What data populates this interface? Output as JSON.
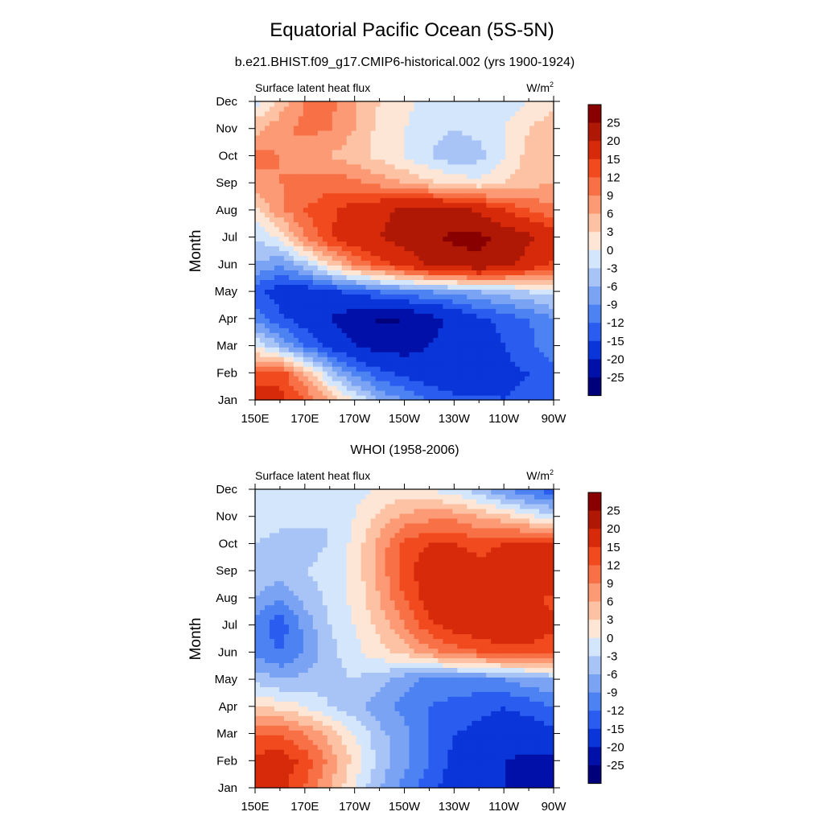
{
  "figure": {
    "title": "Equatorial Pacific Ocean (5S-5N)",
    "top_panel_title": "b.e21.BHIST.f09_g17.CMIP6-historical.002 (yrs 1900-1924)",
    "bottom_panel_title": "WHOI (1958-2006)"
  },
  "palette": {
    "levels": [
      "-25",
      "-20",
      "-15",
      "-12",
      "-9",
      "-6",
      "-3",
      "0",
      "3",
      "6",
      "9",
      "12",
      "15",
      "20",
      "25"
    ],
    "colors": [
      "#00007a",
      "#0010a8",
      "#0a35d8",
      "#2a5cf0",
      "#4d82f2",
      "#7ba3f4",
      "#a8c4f6",
      "#d4e6fb",
      "#fde6d6",
      "#fcc2a3",
      "#fb9a74",
      "#f87046",
      "#f04a1e",
      "#d62a0a",
      "#b01806",
      "#880000"
    ]
  },
  "chart_data": [
    {
      "type": "heatmap",
      "title": "b.e21.BHIST.f09_g17.CMIP6-historical.002 (yrs 1900-1924)",
      "subtitle_left": "Surface latent heat flux",
      "units": "W/m",
      "units_sup": "2",
      "xlabel": "",
      "ylabel": "Month",
      "x_ticks": [
        "150E",
        "170E",
        "170W",
        "150W",
        "130W",
        "110W",
        "90W"
      ],
      "x_lon": [
        150,
        170,
        190,
        210,
        230,
        250,
        270
      ],
      "xlim": [
        150,
        270
      ],
      "y_ticks": [
        "Jan",
        "Feb",
        "Mar",
        "Apr",
        "May",
        "Jun",
        "Jul",
        "Aug",
        "Sep",
        "Oct",
        "Nov",
        "Dec"
      ],
      "colorbar_labels": [
        "25",
        "20",
        "15",
        "12",
        "9",
        "6",
        "3",
        "0",
        "-3",
        "-6",
        "-9",
        "-12",
        "-15",
        "-20",
        "-25"
      ],
      "values": [
        [
          18,
          16,
          12,
          6,
          0,
          -6,
          -9,
          -12,
          -14,
          -14,
          -15,
          -14,
          -12
        ],
        [
          12,
          14,
          6,
          -4,
          -10,
          -14,
          -16,
          -18,
          -18,
          -18,
          -16,
          -15,
          -13
        ],
        [
          0,
          -6,
          -12,
          -16,
          -20,
          -22,
          -22,
          -20,
          -18,
          -17,
          -15,
          -13,
          -10
        ],
        [
          -10,
          -14,
          -17,
          -20,
          -23,
          -26,
          -25,
          -22,
          -19,
          -16,
          -14,
          -12,
          -9
        ],
        [
          -14,
          -17,
          -18,
          -16,
          -14,
          -12,
          -10,
          -9,
          -8,
          -6,
          -5,
          -3,
          -2
        ],
        [
          -6,
          -9,
          -4,
          3,
          9,
          13,
          17,
          21,
          23,
          24,
          22,
          18,
          14
        ],
        [
          -3,
          1,
          9,
          15,
          18,
          20,
          22,
          24,
          26,
          26,
          24,
          21,
          17
        ],
        [
          2,
          8,
          12,
          14,
          17,
          19,
          21,
          22,
          22,
          19,
          15,
          12,
          10
        ],
        [
          8,
          9,
          10,
          11,
          10,
          8,
          6,
          4,
          2,
          1,
          3,
          5,
          6
        ],
        [
          10,
          9,
          7,
          6,
          4,
          2,
          0,
          -3,
          -5,
          -4,
          0,
          4,
          6
        ],
        [
          5,
          8,
          10,
          9,
          6,
          2,
          0,
          -2,
          -3,
          -2,
          0,
          3,
          5
        ],
        [
          -1,
          4,
          9,
          10,
          6,
          3,
          1,
          -1,
          -3,
          -3,
          -2,
          0,
          2
        ]
      ]
    },
    {
      "type": "heatmap",
      "title": "WHOI (1958-2006)",
      "subtitle_left": "Surface latent heat flux",
      "units": "W/m",
      "units_sup": "2",
      "xlabel": "",
      "ylabel": "Month",
      "x_ticks": [
        "150E",
        "170E",
        "170W",
        "150W",
        "130W",
        "110W",
        "90W"
      ],
      "x_lon": [
        150,
        170,
        190,
        210,
        230,
        250,
        270
      ],
      "xlim": [
        150,
        270
      ],
      "y_ticks": [
        "Jan",
        "Feb",
        "Mar",
        "Apr",
        "May",
        "Jun",
        "Jul",
        "Aug",
        "Sep",
        "Oct",
        "Nov",
        "Dec"
      ],
      "colorbar_labels": [
        "25",
        "20",
        "15",
        "12",
        "9",
        "6",
        "3",
        "0",
        "-3",
        "-6",
        "-9",
        "-12",
        "-15",
        "-20",
        "-25"
      ],
      "values": [
        [
          16,
          16,
          12,
          6,
          0,
          -6,
          -10,
          -14,
          -17,
          -18,
          -20,
          -22,
          -24
        ],
        [
          16,
          17,
          14,
          8,
          2,
          -4,
          -8,
          -12,
          -16,
          -18,
          -20,
          -21,
          -22
        ],
        [
          12,
          12,
          9,
          5,
          0,
          -5,
          -8,
          -12,
          -15,
          -16,
          -17,
          -17,
          -16
        ],
        [
          3,
          2,
          0,
          -3,
          -5,
          -8,
          -10,
          -12,
          -13,
          -14,
          -15,
          -14,
          -12
        ],
        [
          -4,
          -6,
          -5,
          -4,
          -3,
          -5,
          -8,
          -10,
          -10,
          -10,
          -9,
          -7,
          -6
        ],
        [
          -10,
          -12,
          -9,
          -4,
          -1,
          2,
          4,
          8,
          10,
          12,
          14,
          14,
          12
        ],
        [
          -10,
          -14,
          -8,
          -3,
          0,
          4,
          9,
          14,
          17,
          18,
          18,
          18,
          16
        ],
        [
          -6,
          -9,
          -5,
          -2,
          1,
          6,
          12,
          17,
          19,
          18,
          16,
          16,
          14
        ],
        [
          -3,
          -4,
          -3,
          -2,
          1,
          7,
          14,
          17,
          18,
          16,
          17,
          19,
          20
        ],
        [
          -3,
          -4,
          -4,
          -3,
          1,
          7,
          13,
          15,
          15,
          14,
          15,
          16,
          16
        ],
        [
          -1,
          -2,
          -2,
          -3,
          0,
          4,
          7,
          8,
          8,
          6,
          4,
          1,
          -2
        ],
        [
          0,
          -1,
          -1,
          -2,
          -1,
          0,
          1,
          0,
          -2,
          -5,
          -9,
          -12,
          -14
        ]
      ]
    }
  ]
}
